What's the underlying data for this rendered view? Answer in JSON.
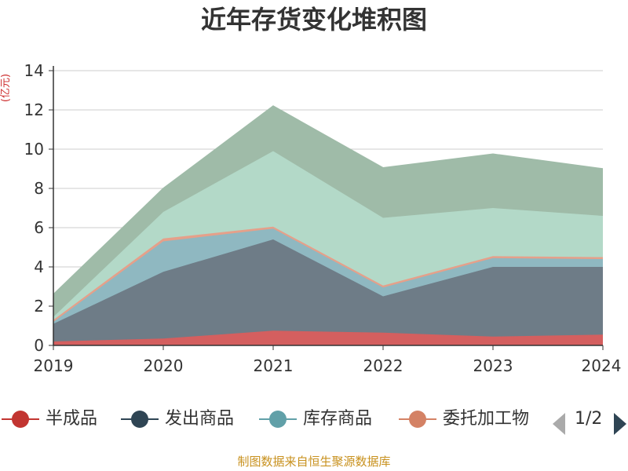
{
  "chart_data": {
    "type": "area",
    "stacked": true,
    "title": "近年存货变化堆积图",
    "unit": "(亿元)",
    "categories": [
      "2019",
      "2020",
      "2021",
      "2022",
      "2023",
      "2024"
    ],
    "ylim": [
      0,
      14
    ],
    "yticks": [
      "0",
      "2",
      "4",
      "6",
      "8",
      "10",
      "12",
      "14"
    ],
    "grid": true,
    "series": [
      {
        "name": "半成品",
        "color": "#d45f5f",
        "legend_color": "#c23531",
        "values": [
          0.2,
          0.35,
          0.75,
          0.65,
          0.45,
          0.55
        ]
      },
      {
        "name": "发出商品",
        "color": "#6e7c87",
        "legend_color": "#2f4554",
        "values": [
          0.9,
          3.4,
          4.65,
          1.85,
          3.55,
          3.45
        ]
      },
      {
        "name": "库存商品",
        "color": "#8fb8c1",
        "legend_color": "#61a0a8",
        "values": [
          0.1,
          1.55,
          0.55,
          0.45,
          0.45,
          0.4
        ]
      },
      {
        "name": "委托加工物",
        "color": "#e5a08a",
        "legend_color": "#d48265",
        "values": [
          0.1,
          0.15,
          0.1,
          0.1,
          0.1,
          0.1
        ]
      },
      {
        "name": "",
        "color": "#b3d9c8",
        "values": [
          0.15,
          1.35,
          3.85,
          3.45,
          2.45,
          2.1
        ]
      },
      {
        "name": "",
        "color": "#9fbba8",
        "values": [
          1.15,
          1.2,
          2.3,
          2.55,
          2.75,
          2.4
        ]
      }
    ],
    "legend_position": "bottom",
    "legend_page": "1/2"
  },
  "footer": {
    "source": "制图数据来自恒生聚源数据库"
  }
}
